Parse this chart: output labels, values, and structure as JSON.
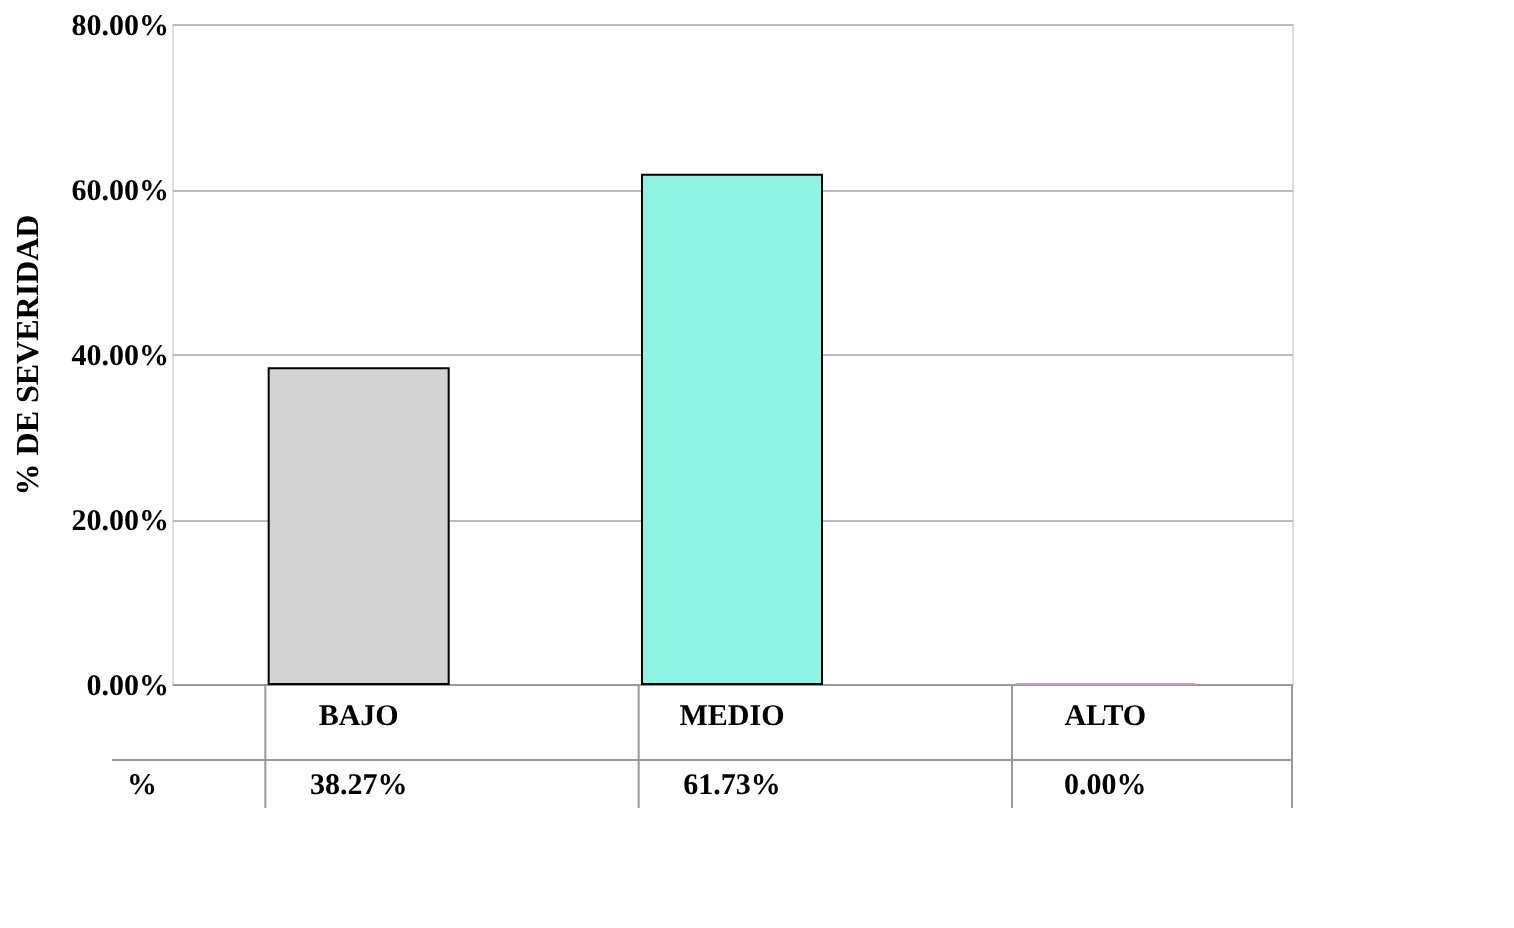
{
  "chart_data": {
    "type": "bar",
    "ylabel": "% DE SEVERIDAD",
    "categories": [
      "BAJO",
      "MEDIO",
      "ALTO"
    ],
    "values": [
      38.27,
      61.73,
      0.0
    ],
    "colors": [
      "#d3d2d3",
      "#8ef3e3",
      "#bba0c0"
    ],
    "value_labels": [
      "38.27%",
      "61.73%",
      "0.00%"
    ],
    "annotations": [
      "%"
    ],
    "ylim": [
      0,
      80
    ],
    "yticks": [
      {
        "value": 0,
        "label": "0.00%"
      },
      {
        "value": 20,
        "label": "20.00%"
      },
      {
        "value": 40,
        "label": "40.00%"
      },
      {
        "value": 60,
        "label": "60.00%"
      },
      {
        "value": 80,
        "label": "80.00%"
      }
    ],
    "grid": "y"
  }
}
